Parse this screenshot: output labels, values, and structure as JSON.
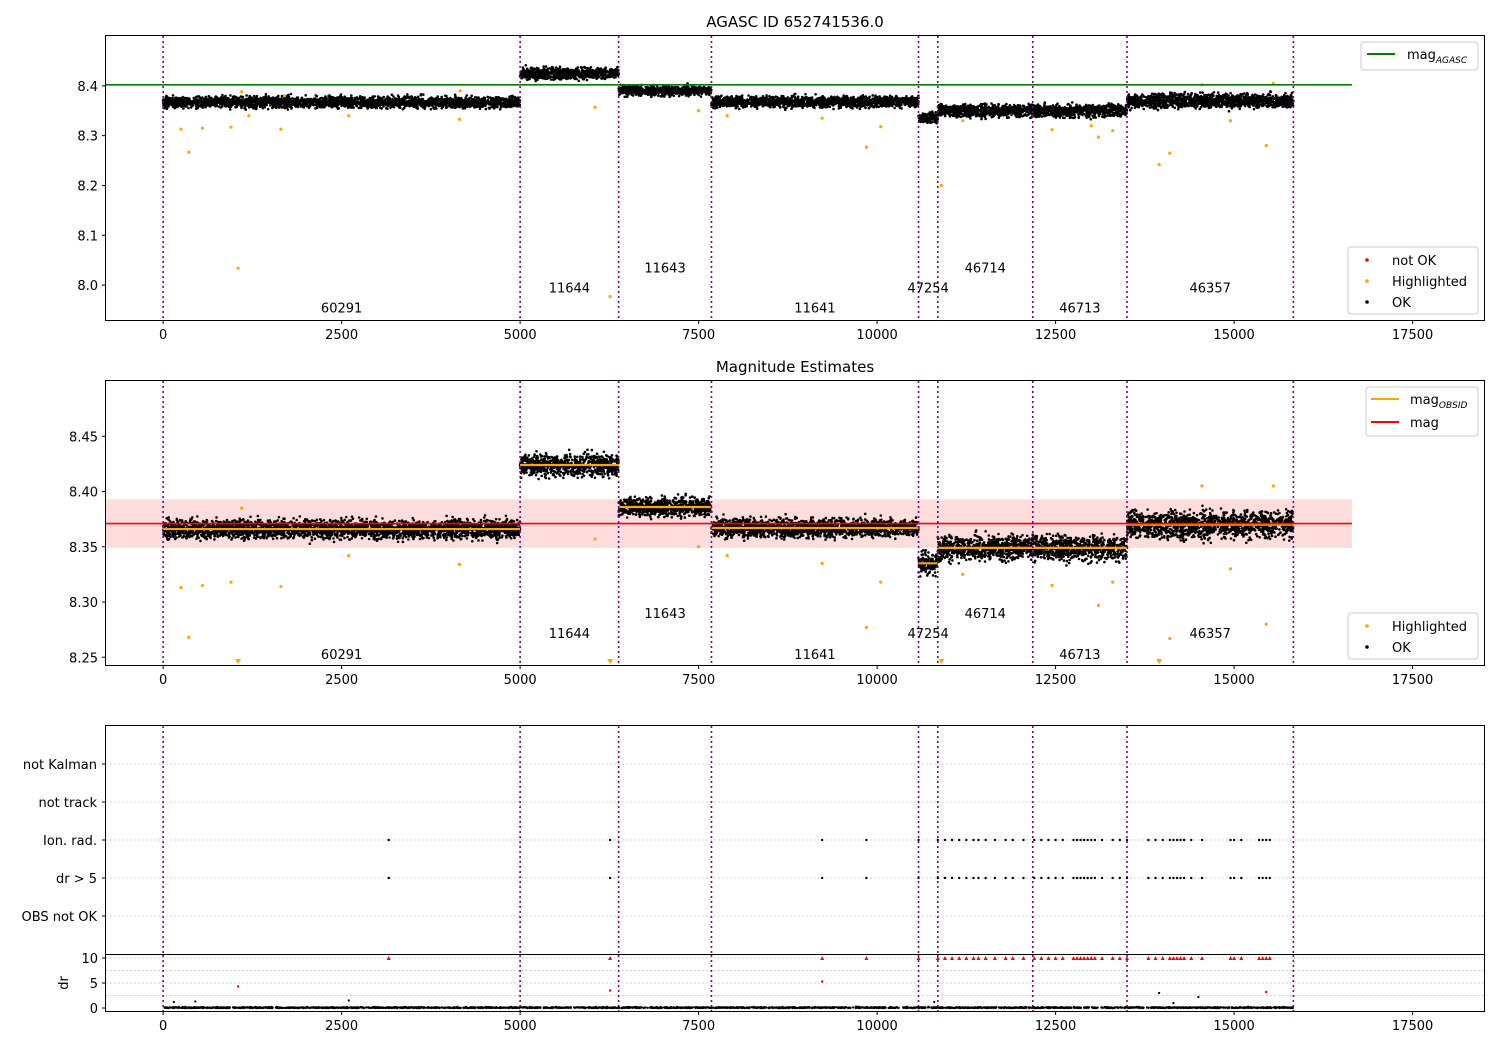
{
  "chart_data": [
    {
      "type": "scatter",
      "title": "AGASC ID 652741536.0",
      "xlabel": "",
      "ylabel": "",
      "xlim": [
        -800,
        18500
      ],
      "ylim": [
        7.93,
        8.5
      ],
      "xticks": [
        0,
        2500,
        5000,
        7500,
        10000,
        12500,
        15000,
        17500
      ],
      "yticks": [
        8.0,
        8.1,
        8.2,
        8.3,
        8.4
      ],
      "grid": false,
      "legends": [
        {
          "placement": "top-right",
          "entries": [
            {
              "label": "mag_AGASC",
              "color": "#008000",
              "kind": "line"
            }
          ]
        },
        {
          "placement": "bottom-right",
          "entries": [
            {
              "label": "not OK",
              "color": "#ff0000",
              "kind": "point"
            },
            {
              "label": "Highlighted",
              "color": "#ffa500",
              "kind": "point"
            },
            {
              "label": "OK",
              "color": "#000000",
              "kind": "point"
            }
          ]
        }
      ],
      "reference_line": {
        "name": "mag_AGASC",
        "y": 8.402,
        "x": [
          -800,
          16650
        ],
        "color": "#008000"
      },
      "obsids": [
        {
          "obsid": "60291",
          "start": 0,
          "end": 5000,
          "mean": 8.367,
          "spread": 0.008,
          "label_y": 7.955
        },
        {
          "obsid": "11644",
          "start": 5000,
          "end": 6380,
          "mean": 8.425,
          "spread": 0.008,
          "label_y": 7.995
        },
        {
          "obsid": "11643",
          "start": 6380,
          "end": 7680,
          "mean": 8.39,
          "spread": 0.007,
          "label_y": 8.035
        },
        {
          "obsid": "11641",
          "start": 7680,
          "end": 10580,
          "mean": 8.368,
          "spread": 0.008,
          "label_y": 7.955
        },
        {
          "obsid": "47254",
          "start": 10580,
          "end": 10850,
          "mean": 8.337,
          "spread": 0.008,
          "label_y": 7.995
        },
        {
          "obsid": "46714",
          "start": 10850,
          "end": 12180,
          "mean": 8.35,
          "spread": 0.009,
          "label_y": 8.035
        },
        {
          "obsid": "46713",
          "start": 12180,
          "end": 13500,
          "mean": 8.35,
          "spread": 0.009,
          "label_y": 7.955
        },
        {
          "obsid": "46357",
          "start": 13500,
          "end": 15830,
          "mean": 8.37,
          "spread": 0.01,
          "label_y": 7.995
        }
      ],
      "highlighted_points": [
        [
          250,
          8.313
        ],
        [
          360,
          8.267
        ],
        [
          550,
          8.315
        ],
        [
          950,
          8.317
        ],
        [
          1050,
          8.034
        ],
        [
          1100,
          8.388
        ],
        [
          1200,
          8.34
        ],
        [
          1650,
          8.313
        ],
        [
          1700,
          8.38
        ],
        [
          2600,
          8.34
        ],
        [
          4150,
          8.333
        ],
        [
          4160,
          8.39
        ],
        [
          6050,
          8.357
        ],
        [
          6260,
          7.977
        ],
        [
          7500,
          8.35
        ],
        [
          7900,
          8.34
        ],
        [
          9230,
          8.335
        ],
        [
          9850,
          8.277
        ],
        [
          10050,
          8.318
        ],
        [
          10900,
          8.2
        ],
        [
          11200,
          8.33
        ],
        [
          12450,
          8.312
        ],
        [
          13000,
          8.32
        ],
        [
          13100,
          8.297
        ],
        [
          13300,
          8.31
        ],
        [
          13950,
          8.242
        ],
        [
          14100,
          8.265
        ],
        [
          14950,
          8.33
        ],
        [
          15450,
          8.28
        ],
        [
          15550,
          8.405
        ],
        [
          14550,
          8.402
        ]
      ],
      "vlines_x": [
        0,
        5000,
        6380,
        7680,
        10580,
        10850,
        12180,
        13500,
        15830
      ],
      "vline_color": "#800080"
    },
    {
      "type": "scatter",
      "title": "Magnitude Estimates",
      "xlabel": "",
      "ylabel": "",
      "xlim": [
        -800,
        18500
      ],
      "ylim": [
        8.243,
        8.5
      ],
      "xticks": [
        0,
        2500,
        5000,
        7500,
        10000,
        12500,
        15000,
        17500
      ],
      "yticks": [
        8.25,
        8.3,
        8.35,
        8.4,
        8.45
      ],
      "grid": false,
      "legends": [
        {
          "placement": "top-right",
          "entries": [
            {
              "label": "mag_OBSID",
              "color": "#ffa500",
              "kind": "line"
            },
            {
              "label": "mag",
              "color": "#ff0000",
              "kind": "line"
            }
          ]
        },
        {
          "placement": "bottom-right",
          "entries": [
            {
              "label": "Highlighted",
              "color": "#ffa500",
              "kind": "point"
            },
            {
              "label": "OK",
              "color": "#000000",
              "kind": "point"
            }
          ]
        }
      ],
      "mag": {
        "y": 8.371,
        "band": [
          8.349,
          8.393
        ],
        "x": [
          -800,
          16650
        ],
        "color": "#ff0000",
        "band_color": "#ffdddd"
      },
      "obsid_means": [
        {
          "obsid": "60291",
          "start": 0,
          "end": 5000,
          "mag": 8.366
        },
        {
          "obsid": "11644",
          "start": 5000,
          "end": 6380,
          "mag": 8.424
        },
        {
          "obsid": "11643",
          "start": 6380,
          "end": 7680,
          "mag": 8.386
        },
        {
          "obsid": "11641",
          "start": 7680,
          "end": 10580,
          "mag": 8.367
        },
        {
          "obsid": "47254",
          "start": 10580,
          "end": 10850,
          "mag": 8.335
        },
        {
          "obsid": "46714",
          "start": 10850,
          "end": 12180,
          "mag": 8.349
        },
        {
          "obsid": "46713",
          "start": 12180,
          "end": 13500,
          "mag": 8.349
        },
        {
          "obsid": "46357",
          "start": 13500,
          "end": 15830,
          "mag": 8.37
        }
      ],
      "obsid_labels": [
        {
          "obsid": "60291",
          "x": 2500,
          "y": 8.253
        },
        {
          "obsid": "11644",
          "x": 5690,
          "y": 8.272
        },
        {
          "obsid": "11643",
          "x": 7030,
          "y": 8.29
        },
        {
          "obsid": "11641",
          "x": 9130,
          "y": 8.253
        },
        {
          "obsid": "47254",
          "x": 10715,
          "y": 8.272
        },
        {
          "obsid": "46714",
          "x": 11515,
          "y": 8.29
        },
        {
          "obsid": "46713",
          "x": 12840,
          "y": 8.253
        },
        {
          "obsid": "46357",
          "x": 14665,
          "y": 8.272
        }
      ],
      "highlighted_points": [
        [
          250,
          8.313
        ],
        [
          360,
          8.268
        ],
        [
          550,
          8.315
        ],
        [
          950,
          8.318
        ],
        [
          1100,
          8.385
        ],
        [
          1650,
          8.314
        ],
        [
          2600,
          8.342
        ],
        [
          4150,
          8.334
        ],
        [
          6050,
          8.357
        ],
        [
          7500,
          8.35
        ],
        [
          7900,
          8.342
        ],
        [
          9230,
          8.335
        ],
        [
          9850,
          8.277
        ],
        [
          10050,
          8.318
        ],
        [
          11200,
          8.325
        ],
        [
          12450,
          8.315
        ],
        [
          13100,
          8.297
        ],
        [
          13300,
          8.318
        ],
        [
          14100,
          8.267
        ],
        [
          14950,
          8.33
        ],
        [
          15450,
          8.28
        ],
        [
          15550,
          8.405
        ],
        [
          14550,
          8.405
        ]
      ],
      "out_of_range_markers_x": [
        1050,
        6260,
        10900,
        13950
      ],
      "vlines_x": [
        0,
        5000,
        6380,
        7680,
        10580,
        10850,
        12180,
        13500,
        15830
      ],
      "vline_color": "#800080"
    },
    {
      "type": "scatter",
      "title": "",
      "xlabel": "",
      "ylabel": "",
      "xlim": [
        -800,
        18500
      ],
      "categories": [
        "not Kalman",
        "not track",
        "Ion. rad.",
        "dr > 5",
        "OBS not OK"
      ],
      "grid": true,
      "flag_points_x": [
        3160,
        6260,
        9230,
        9850,
        10580,
        10850,
        10950,
        11050,
        11150,
        11250,
        11350,
        11420,
        11520,
        11650,
        11800,
        11900,
        12050,
        12200,
        12300,
        12400,
        12500,
        12600,
        12750,
        12800,
        12850,
        12900,
        12950,
        13000,
        13050,
        13150,
        13300,
        13400,
        13500,
        13800,
        13900,
        14000,
        14100,
        14150,
        14200,
        14250,
        14300,
        14400,
        14550,
        14950,
        15000,
        15100,
        15350,
        15400,
        15450,
        15500
      ],
      "flag_rows": [
        "Ion. rad.",
        "dr > 5"
      ],
      "vlines_x": [
        0,
        5000,
        6380,
        7680,
        10580,
        10850,
        12180,
        13500,
        15830
      ],
      "vline_color": "#800080"
    },
    {
      "type": "scatter",
      "title": "",
      "xlabel": "",
      "ylabel": "dr",
      "xlim": [
        -800,
        18500
      ],
      "ylim": [
        -0.6,
        10.6
      ],
      "xticks": [
        0,
        2500,
        5000,
        7500,
        10000,
        12500,
        15000,
        17500
      ],
      "yticks": [
        0,
        5,
        10
      ],
      "grid": true,
      "not_ok_points": [
        [
          1050,
          4.3
        ],
        [
          6260,
          3.5
        ],
        [
          9230,
          5.3
        ],
        [
          15450,
          3.2
        ]
      ],
      "dr_outliers": [
        [
          150,
          1.2
        ],
        [
          450,
          1.3
        ],
        [
          2600,
          1.5
        ],
        [
          10800,
          1.2
        ],
        [
          13950,
          3.0
        ],
        [
          14500,
          2.2
        ],
        [
          14150,
          1.0
        ]
      ],
      "vlines_x": [
        0,
        5000,
        6380,
        7680,
        10580,
        10850,
        12180,
        13500,
        15830
      ],
      "vline_color": "#800080"
    }
  ]
}
